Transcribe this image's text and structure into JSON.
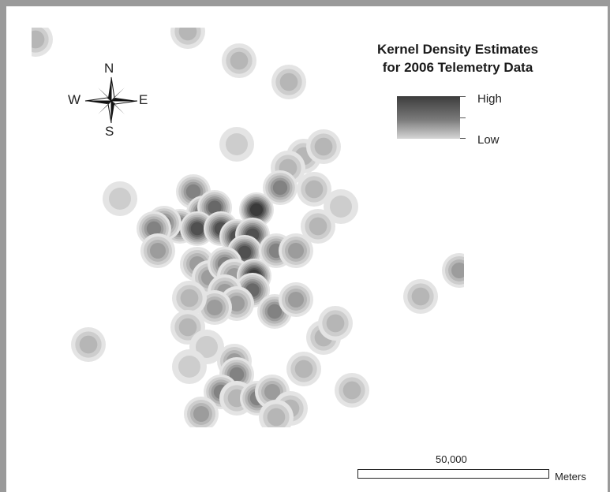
{
  "title": {
    "line1": "Kernel Density Estimates",
    "line2": "for 2006 Telemetry Data"
  },
  "legend": {
    "high_label": "High",
    "low_label": "Low",
    "colors": {
      "high": "#3c3c3c",
      "low": "#d6d6d6"
    }
  },
  "compass": {
    "north": "N",
    "south": "S",
    "west": "W",
    "east": "E"
  },
  "scale_bar": {
    "value_label": "50,000",
    "unit_label": "Meters"
  },
  "colors": {
    "frame": "#9a9a9a",
    "background": "#ffffff"
  }
}
